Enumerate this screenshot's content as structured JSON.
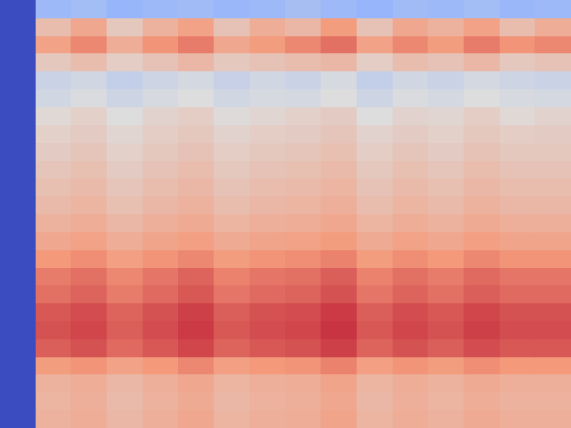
{
  "chart_data": {
    "type": "heatmap",
    "color": "coolwarm",
    "zlim": [
      0,
      100
    ],
    "tick_labels": false,
    "grid": false,
    "cells": [
      [
        0,
        30,
        32,
        28,
        30,
        31,
        29,
        30,
        33,
        30,
        28,
        31,
        30,
        32,
        29,
        30
      ],
      [
        0,
        62,
        70,
        58,
        66,
        72,
        60,
        68,
        64,
        74,
        60,
        70,
        66,
        72,
        62,
        68
      ],
      [
        0,
        72,
        78,
        68,
        76,
        80,
        70,
        74,
        78,
        82,
        72,
        78,
        74,
        80,
        76,
        78
      ],
      [
        0,
        58,
        62,
        56,
        60,
        64,
        58,
        60,
        62,
        64,
        56,
        62,
        60,
        64,
        58,
        60
      ],
      [
        0,
        44,
        46,
        42,
        45,
        47,
        43,
        46,
        44,
        48,
        42,
        46,
        44,
        47,
        45,
        44
      ],
      [
        0,
        46,
        49,
        45,
        48,
        50,
        46,
        48,
        47,
        50,
        45,
        49,
        47,
        50,
        48,
        47
      ],
      [
        0,
        52,
        55,
        50,
        54,
        56,
        51,
        53,
        55,
        57,
        50,
        54,
        53,
        56,
        52,
        54
      ],
      [
        0,
        55,
        57,
        53,
        56,
        58,
        54,
        56,
        57,
        59,
        54,
        57,
        55,
        58,
        56,
        57
      ],
      [
        0,
        57,
        59,
        55,
        58,
        60,
        56,
        58,
        59,
        61,
        56,
        59,
        57,
        60,
        58,
        58
      ],
      [
        0,
        59,
        61,
        57,
        60,
        62,
        58,
        60,
        61,
        63,
        58,
        61,
        59,
        62,
        60,
        60
      ],
      [
        0,
        61,
        63,
        59,
        62,
        64,
        60,
        62,
        63,
        65,
        60,
        63,
        61,
        64,
        62,
        62
      ],
      [
        0,
        63,
        65,
        61,
        64,
        66,
        62,
        64,
        65,
        67,
        62,
        65,
        63,
        66,
        64,
        64
      ],
      [
        0,
        66,
        68,
        64,
        67,
        69,
        65,
        67,
        68,
        70,
        65,
        68,
        66,
        69,
        67,
        67
      ],
      [
        0,
        70,
        72,
        68,
        71,
        73,
        69,
        71,
        72,
        74,
        69,
        72,
        70,
        73,
        71,
        71
      ],
      [
        0,
        75,
        77,
        73,
        76,
        78,
        74,
        76,
        77,
        79,
        74,
        77,
        75,
        78,
        76,
        76
      ],
      [
        0,
        80,
        82,
        78,
        81,
        84,
        79,
        81,
        82,
        85,
        79,
        82,
        80,
        83,
        81,
        81
      ],
      [
        0,
        82,
        84,
        80,
        83,
        86,
        81,
        83,
        84,
        87,
        81,
        84,
        82,
        85,
        83,
        83
      ],
      [
        0,
        86,
        88,
        84,
        87,
        90,
        85,
        87,
        88,
        91,
        85,
        88,
        86,
        89,
        87,
        87
      ],
      [
        0,
        87,
        89,
        85,
        88,
        91,
        86,
        88,
        89,
        92,
        86,
        89,
        87,
        90,
        88,
        88
      ],
      [
        0,
        85,
        87,
        83,
        86,
        89,
        84,
        86,
        87,
        90,
        84,
        87,
        85,
        88,
        86,
        86
      ],
      [
        0,
        74,
        76,
        72,
        75,
        78,
        73,
        75,
        76,
        79,
        73,
        76,
        74,
        77,
        75,
        75
      ],
      [
        0,
        66,
        68,
        64,
        67,
        70,
        65,
        67,
        68,
        71,
        65,
        68,
        66,
        69,
        67,
        67
      ],
      [
        0,
        65,
        67,
        63,
        66,
        69,
        64,
        66,
        67,
        70,
        64,
        67,
        65,
        68,
        66,
        66
      ],
      [
        0,
        66,
        68,
        64,
        67,
        70,
        65,
        67,
        68,
        71,
        65,
        68,
        66,
        69,
        67,
        67
      ]
    ]
  }
}
